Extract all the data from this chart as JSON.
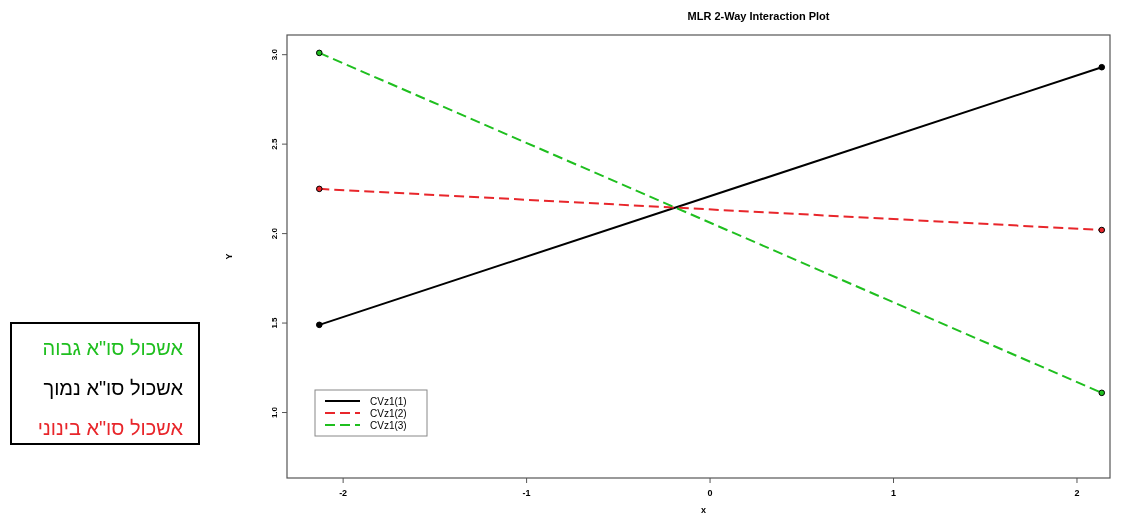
{
  "chart_data": {
    "type": "line",
    "title": "MLR 2-Way Interaction Plot",
    "xlabel": "x",
    "ylabel": "Y",
    "x": [
      -2.13,
      2.135
    ],
    "series": [
      {
        "name": "CVz1(1)",
        "color": "#000000",
        "values": [
          1.49,
          2.93
        ],
        "line_style": "solid"
      },
      {
        "name": "CVz1(2)",
        "color": "#e8262b",
        "values": [
          2.25,
          2.02
        ],
        "line_style": "dashed"
      },
      {
        "name": "CVz1(3)",
        "color": "#1fbf1f",
        "values": [
          3.01,
          1.11
        ],
        "line_style": "dashed"
      }
    ],
    "xlim": [
      -2.306,
      2.18
    ],
    "ylim": [
      0.634,
      3.11
    ],
    "xticks": [
      -2,
      -1,
      0,
      1,
      2
    ],
    "yticks": [
      {
        "value": 1,
        "label": "1.0"
      },
      {
        "value": 1.5,
        "label": "1.5"
      },
      {
        "value": 2,
        "label": "2.0"
      },
      {
        "value": 2.5,
        "label": "2.5"
      },
      {
        "value": 3,
        "label": "3.0"
      }
    ],
    "marker": "circle",
    "legend": "bottom left",
    "grid": false,
    "annotations": [
      "אשכול סו\"א גבוה",
      "אשכול סו\"א נמוך",
      "אשכול סו\"א בינוני"
    ]
  }
}
